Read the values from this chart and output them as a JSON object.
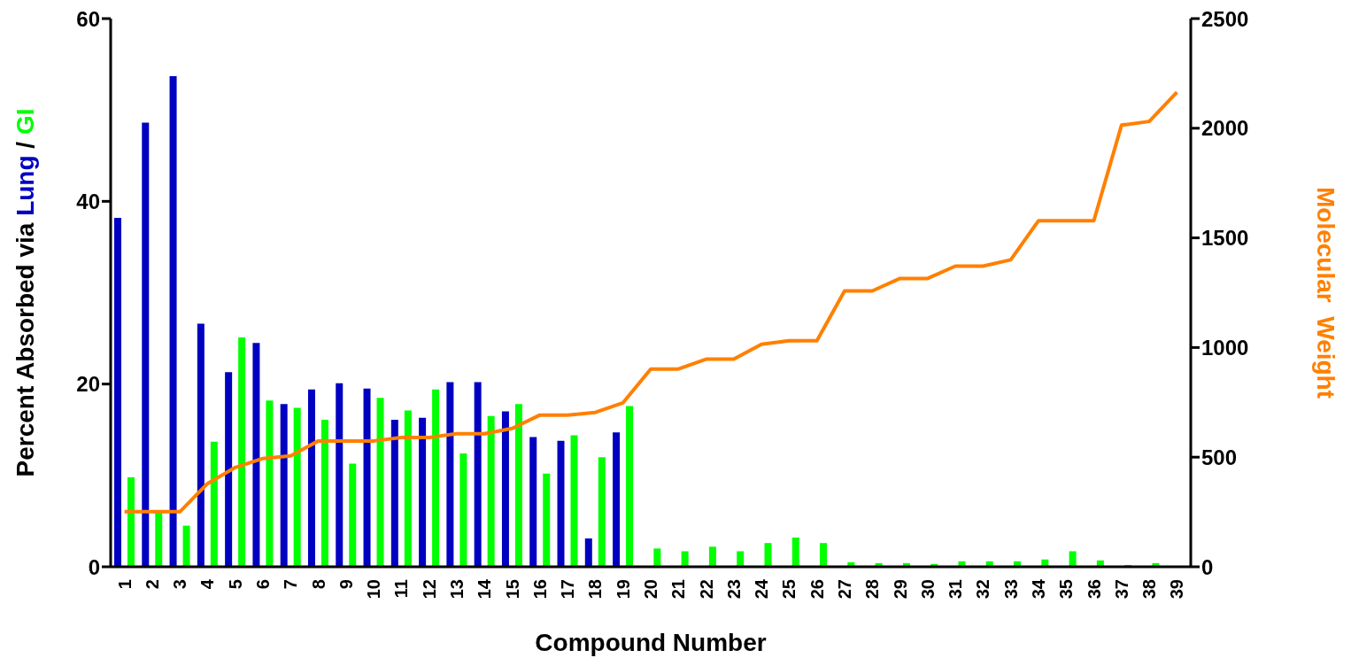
{
  "chart_data": {
    "type": "bar",
    "xlabel": "Compound Number",
    "ylabel": "Percent Absorbed via Lung / GI",
    "y2label": "Molecular  Weight",
    "categories": [
      "1",
      "2",
      "3",
      "4",
      "5",
      "6",
      "7",
      "8",
      "9",
      "10",
      "11",
      "12",
      "13",
      "14",
      "15",
      "16",
      "17",
      "18",
      "19",
      "20",
      "21",
      "22",
      "23",
      "24",
      "25",
      "26",
      "27",
      "28",
      "29",
      "30",
      "31",
      "32",
      "33",
      "34",
      "35",
      "36",
      "37",
      "38",
      "39"
    ],
    "series": [
      {
        "color": "#0000c0",
        "values": [
          38.2,
          48.6,
          53.7,
          26.6,
          21.3,
          24.5,
          17.8,
          19.4,
          20.1,
          19.5,
          16.1,
          16.3,
          20.2,
          20.2,
          17.0,
          14.2,
          13.8,
          3.1,
          14.7,
          null,
          null,
          null,
          null,
          null,
          null,
          null,
          null,
          null,
          null,
          null,
          null,
          null,
          null,
          null,
          null,
          null,
          null,
          null,
          null
        ]
      },
      {
        "color": "#00ff00",
        "values": [
          9.8,
          6.0,
          4.5,
          13.7,
          25.1,
          18.2,
          17.4,
          16.1,
          11.3,
          18.5,
          17.1,
          19.4,
          12.4,
          16.5,
          17.8,
          10.2,
          14.4,
          12.0,
          17.6,
          2.0,
          1.7,
          2.2,
          1.7,
          2.6,
          3.2,
          2.6,
          0.5,
          0.4,
          0.4,
          0.3,
          0.6,
          0.6,
          0.6,
          0.8,
          1.7,
          0.7,
          0.2,
          0.4,
          null
        ]
      },
      {
        "type": "line",
        "axis": "y2",
        "color": "#ff8000",
        "values": [
          251,
          251,
          251,
          380,
          453,
          494,
          506,
          574,
          574,
          574,
          590,
          590,
          607,
          607,
          631,
          692,
          692,
          704,
          748,
          902,
          902,
          947,
          947,
          1015,
          1031,
          1031,
          1258,
          1258,
          1315,
          1315,
          1371,
          1371,
          1400,
          1578,
          1578,
          1578,
          2014,
          2031,
          2164
        ]
      }
    ],
    "ylim": [
      0,
      60
    ],
    "yticks": [
      0,
      20,
      40,
      60
    ],
    "y2lim": [
      0,
      2500
    ],
    "y2ticks": [
      0,
      500,
      1000,
      1500,
      2000,
      2500
    ],
    "grid": false,
    "legend": false
  }
}
